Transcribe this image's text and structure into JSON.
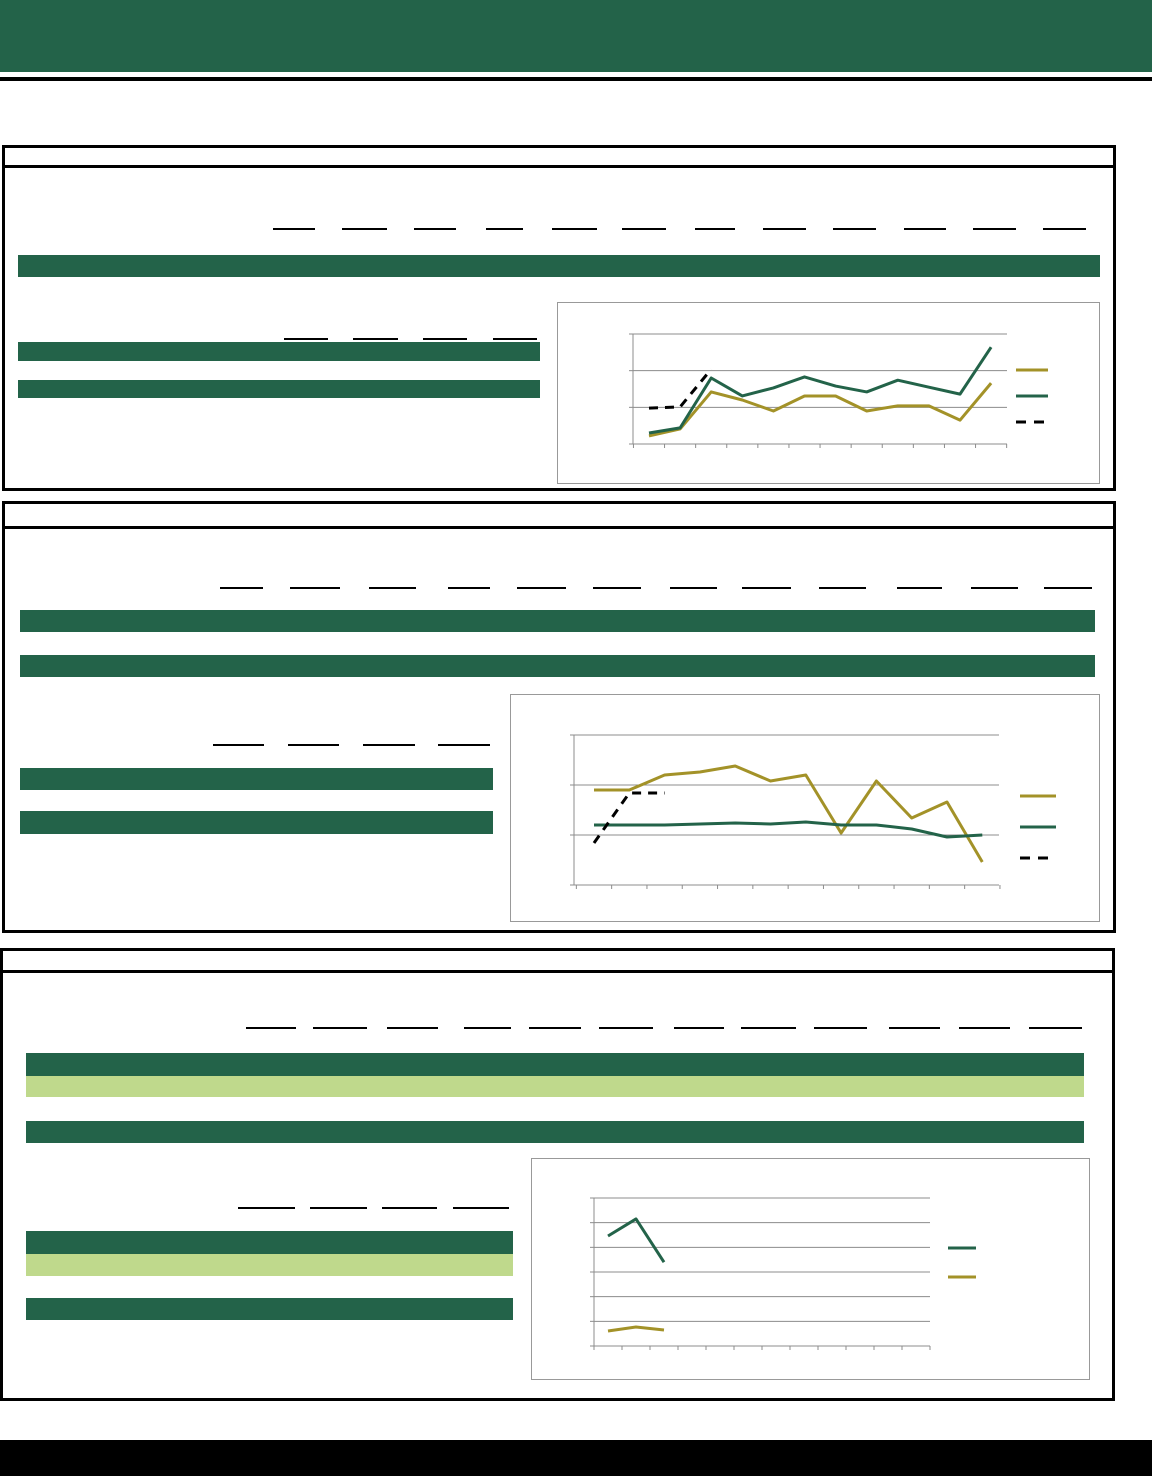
{
  "chart_data": [
    {
      "type": "line",
      "ylim": [
        0,
        3
      ],
      "yticks": [
        0,
        1,
        2,
        3
      ],
      "grid": true,
      "series": [
        {
          "color": "#a39228",
          "values": [
            0.22,
            0.41,
            1.42,
            1.2,
            0.9,
            1.31,
            1.31,
            0.9,
            1.04,
            1.04,
            0.65,
            1.66
          ]
        },
        {
          "color": "#236349",
          "values": [
            0.3,
            0.44,
            1.8,
            1.31,
            1.53,
            1.83,
            1.58,
            1.42,
            1.74,
            1.55,
            1.36,
            2.64
          ]
        },
        {
          "color": "#000000",
          "dash": true,
          "values": [
            0.98,
            1.01,
            2.04,
            null,
            null,
            null,
            null,
            null,
            null,
            null,
            null,
            null
          ]
        }
      ]
    },
    {
      "type": "line",
      "ylim": [
        0,
        3
      ],
      "yticks": [
        0,
        1,
        2,
        3
      ],
      "grid": true,
      "series": [
        {
          "color": "#a39228",
          "values": [
            1.9,
            1.9,
            2.2,
            2.26,
            2.38,
            2.08,
            2.2,
            1.04,
            2.08,
            1.34,
            1.66,
            0.46
          ]
        },
        {
          "color": "#236349",
          "values": [
            1.2,
            1.2,
            1.2,
            1.22,
            1.24,
            1.22,
            1.26,
            1.2,
            1.2,
            1.12,
            0.96,
            1.0
          ]
        },
        {
          "color": "#000000",
          "dash": true,
          "values": [
            0.84,
            1.84,
            1.84,
            null,
            null,
            null,
            null,
            null,
            null,
            null,
            null,
            null
          ]
        }
      ]
    },
    {
      "type": "line",
      "ylim": [
        0,
        6
      ],
      "yticks": [
        0,
        1,
        2,
        3,
        4,
        5,
        6
      ],
      "grid": true,
      "series": [
        {
          "color": "#236349",
          "values": [
            4.46,
            5.15,
            3.4,
            null,
            null,
            null,
            null,
            null,
            null,
            null,
            null,
            null
          ]
        },
        {
          "color": "#a39228",
          "values": [
            0.61,
            0.77,
            0.65,
            null,
            null,
            null,
            null,
            null,
            null,
            null,
            null,
            null
          ]
        }
      ]
    }
  ]
}
